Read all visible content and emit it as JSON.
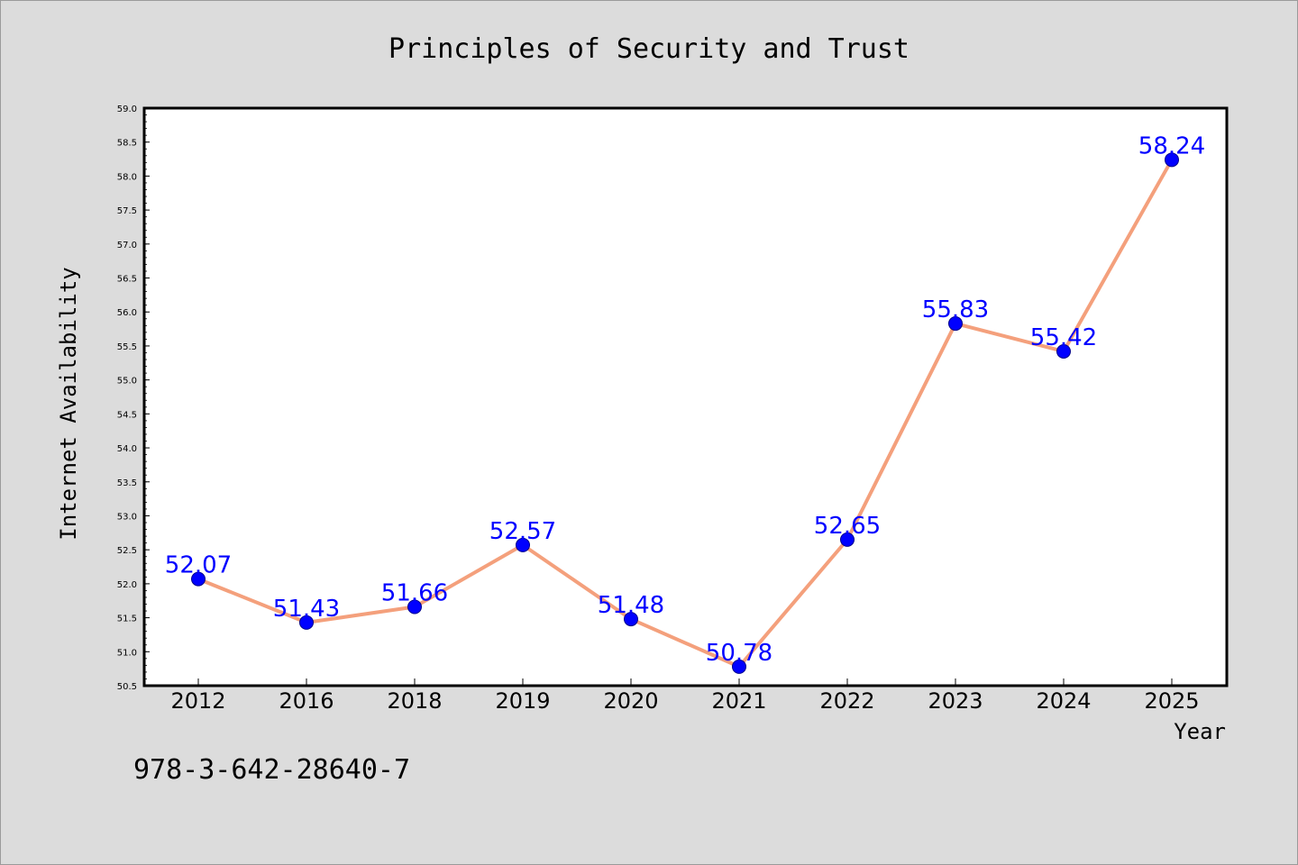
{
  "chart_data": {
    "type": "line",
    "title": "Principles of Security and Trust",
    "xlabel": "Year",
    "ylabel": "Internet Availability",
    "categories": [
      "2012",
      "2016",
      "2018",
      "2019",
      "2020",
      "2021",
      "2022",
      "2023",
      "2024",
      "2025"
    ],
    "series": [
      {
        "values": [
          52.07,
          51.43,
          51.66,
          52.57,
          51.48,
          50.78,
          52.65,
          55.83,
          55.42,
          58.24
        ],
        "data_labels": [
          "52.07",
          "51.43",
          "51.66",
          "52.57",
          "51.48",
          "50.78",
          "52.65",
          "55.83",
          "55.42",
          "58.24"
        ]
      }
    ],
    "ylim": [
      50.5,
      59.0
    ],
    "yticks": [
      50.5,
      51.0,
      51.5,
      52.0,
      52.5,
      53.0,
      53.5,
      54.0,
      54.5,
      55.0,
      55.5,
      56.0,
      56.5,
      57.0,
      57.5,
      58.0,
      58.5,
      59.0
    ],
    "ytick_labels": [
      "50.5",
      "51.0",
      "51.5",
      "52.0",
      "52.5",
      "53.0",
      "53.5",
      "54.0",
      "54.5",
      "55.0",
      "55.5",
      "56.0",
      "56.5",
      "57.0",
      "57.5",
      "58.0",
      "58.5",
      "59.0"
    ],
    "grid": false,
    "legend": "none",
    "colors": {
      "line": "#f4a07c",
      "marker": "#0000ff",
      "data_label": "#0000ff",
      "background": "#dcdcdc",
      "plot_background": "#ffffff"
    }
  },
  "footnote": "978-3-642-28640-7"
}
